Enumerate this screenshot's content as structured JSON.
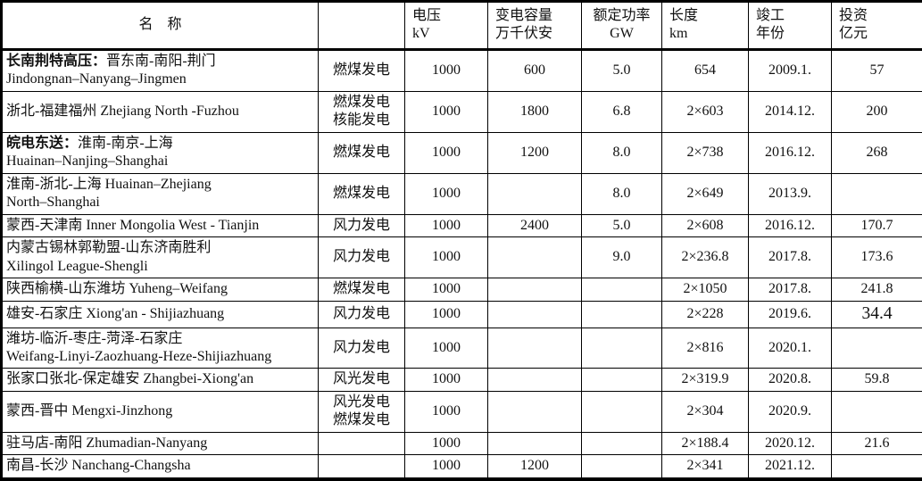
{
  "colors": {
    "background": "#ffffff",
    "border": "#000000",
    "text": "#111111"
  },
  "table": {
    "headers": {
      "name": "名　称",
      "type": "",
      "voltage": "电压\nkV",
      "capacity": "变电容量\n万千伏安",
      "power": "额定功率\nGW",
      "length": "长度\nkm",
      "year": "竣工\n年份",
      "investment": "投资\n亿元"
    },
    "rows": [
      {
        "name_bold": "长南荆特高压：",
        "name": "晋东南-南阳-荆门\nJindongnan–Nanyang–Jingmen",
        "type": "燃煤发电",
        "voltage": "1000",
        "capacity": "600",
        "power": "5.0",
        "length": "654",
        "year": "2009.1.",
        "investment": "57"
      },
      {
        "name": "浙北-福建福州 Zhejiang North -Fuzhou",
        "type": "燃煤发电\n核能发电",
        "voltage": "1000",
        "capacity": "1800",
        "power": "6.8",
        "length": "2×603",
        "year": "2014.12.",
        "investment": "200"
      },
      {
        "name_bold": "皖电东送：",
        "name": "淮南-南京-上海\nHuainan–Nanjing–Shanghai",
        "type": "燃煤发电",
        "voltage": "1000",
        "capacity": "1200",
        "power": "8.0",
        "length": "2×738",
        "year": "2016.12.",
        "investment": "268"
      },
      {
        "name": "淮南-浙北-上海 Huainan–Zhejiang\nNorth–Shanghai",
        "type": "燃煤发电",
        "voltage": "1000",
        "capacity": "",
        "power": "8.0",
        "length": "2×649",
        "year": "2013.9.",
        "investment": ""
      },
      {
        "name": "蒙西-天津南 Inner Mongolia West - Tianjin",
        "type": "风力发电",
        "voltage": "1000",
        "capacity": "2400",
        "power": "5.0",
        "length": "2×608",
        "year": "2016.12.",
        "investment": "170.7"
      },
      {
        "name": "内蒙古锡林郭勒盟-山东济南胜利\nXilingol League-Shengli",
        "type": "风力发电",
        "voltage": "1000",
        "capacity": "",
        "power": "9.0",
        "length": "2×236.8",
        "year": "2017.8.",
        "investment": "173.6"
      },
      {
        "name": "陕西榆横-山东潍坊 Yuheng–Weifang",
        "type": "燃煤发电",
        "voltage": "1000",
        "capacity": "",
        "power": "",
        "length": "2×1050",
        "year": "2017.8.",
        "investment": "241.8"
      },
      {
        "name": "雄安-石家庄 Xiong'an - Shijiazhuang",
        "type": "风力发电",
        "voltage": "1000",
        "capacity": "",
        "power": "",
        "length": "2×228",
        "year": "2019.6.",
        "investment": "34.4",
        "investment_large": true
      },
      {
        "name": "潍坊-临沂-枣庄-菏泽-石家庄\nWeifang-Linyi-Zaozhuang-Heze-Shijiazhuang",
        "type": "风力发电",
        "voltage": "1000",
        "capacity": "",
        "power": "",
        "length": "2×816",
        "year": "2020.1.",
        "investment": ""
      },
      {
        "name": "张家口张北-保定雄安 Zhangbei-Xiong'an",
        "type": "风光发电",
        "voltage": "1000",
        "capacity": "",
        "power": "",
        "length": "2×319.9",
        "year": "2020.8.",
        "investment": "59.8"
      },
      {
        "name": "蒙西-晋中 Mengxi-Jinzhong",
        "type": "风光发电\n燃煤发电",
        "voltage": "1000",
        "capacity": "",
        "power": "",
        "length": "2×304",
        "year": "2020.9.",
        "investment": ""
      },
      {
        "name": "驻马店-南阳 Zhumadian-Nanyang",
        "type": "",
        "voltage": "1000",
        "capacity": "",
        "power": "",
        "length": "2×188.4",
        "year": "2020.12.",
        "investment": "21.6"
      },
      {
        "name": "南昌-长沙 Nanchang-Changsha",
        "type": "",
        "voltage": "1000",
        "capacity": "1200",
        "power": "",
        "length": "2×341",
        "year": "2021.12.",
        "investment": ""
      }
    ]
  }
}
